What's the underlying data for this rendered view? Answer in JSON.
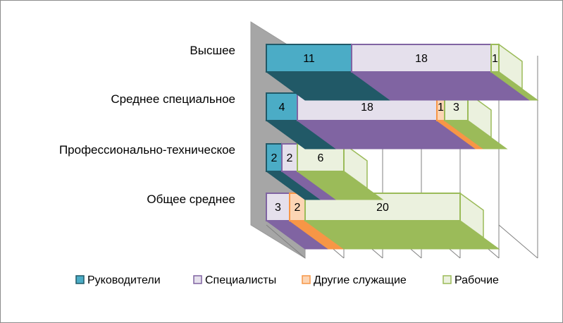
{
  "chart_data": {
    "type": "bar",
    "orientation": "horizontal",
    "stacked": true,
    "style": "3d",
    "categories": [
      "Высшее",
      "Среднее специальное",
      "Профессионально-техническое",
      "Общее среднее"
    ],
    "series": [
      {
        "name": "Руководители",
        "values": [
          11,
          4,
          2,
          0
        ],
        "color": "#4bacc6"
      },
      {
        "name": "Специалисты",
        "values": [
          18,
          18,
          2,
          3
        ],
        "color": "#e5e0ec"
      },
      {
        "name": "Другие служащие",
        "values": [
          0,
          1,
          0,
          2
        ],
        "color": "#fcd5b4"
      },
      {
        "name": "Рабочие",
        "values": [
          1,
          3,
          6,
          20
        ],
        "color": "#ebf1de"
      }
    ],
    "edge_colors": [
      "#215967",
      "#8064a2",
      "#f79646",
      "#9bbb59"
    ],
    "xlim": [
      0,
      30
    ],
    "grid": true,
    "legend": "bottom"
  }
}
